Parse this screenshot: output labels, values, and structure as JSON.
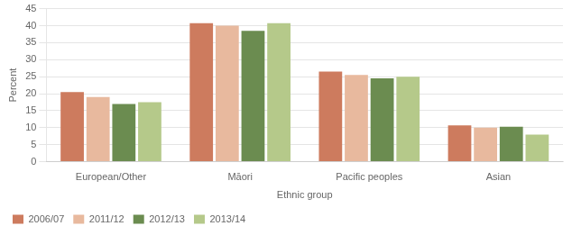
{
  "chart_data": {
    "type": "bar",
    "categories": [
      "European/Other",
      "Māori",
      "Pacific peoples",
      "Asian"
    ],
    "series": [
      {
        "name": "2006/07",
        "color": "#cd7b5e",
        "values": [
          20.5,
          40.7,
          26.5,
          10.7
        ]
      },
      {
        "name": "2011/12",
        "color": "#e8b99e",
        "values": [
          19.0,
          40.0,
          25.5,
          10.0
        ]
      },
      {
        "name": "2012/13",
        "color": "#6b8c50",
        "values": [
          17.0,
          38.5,
          24.5,
          10.3
        ]
      },
      {
        "name": "2013/14",
        "color": "#b5c98a",
        "values": [
          17.5,
          40.7,
          25.0,
          8.0
        ]
      }
    ],
    "xlabel": "Ethnic group",
    "ylabel": "Percent",
    "ylim": [
      0,
      45
    ],
    "yticks": [
      0,
      5,
      10,
      15,
      20,
      25,
      30,
      35,
      40,
      45
    ],
    "grid": true,
    "legend": "lower left"
  }
}
